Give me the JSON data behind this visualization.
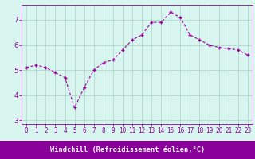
{
  "x": [
    0,
    1,
    2,
    3,
    4,
    5,
    6,
    7,
    8,
    9,
    10,
    11,
    12,
    13,
    14,
    15,
    16,
    17,
    18,
    19,
    20,
    21,
    22,
    23
  ],
  "y": [
    5.1,
    5.2,
    5.1,
    4.9,
    4.7,
    3.5,
    4.3,
    5.0,
    5.3,
    5.4,
    5.8,
    6.2,
    6.4,
    6.9,
    6.9,
    7.3,
    7.1,
    6.4,
    6.2,
    6.0,
    5.9,
    5.85,
    5.8,
    5.6
  ],
  "line_color": "#990099",
  "marker": "+",
  "bg_color": "#d8f5f0",
  "grid_color": "#b0d8cc",
  "xlabel": "Windchill (Refroidissement éolien,°C)",
  "xlabel_color": "#ffffff",
  "xlabel_bg": "#880099",
  "xlim": [
    -0.5,
    23.5
  ],
  "ylim": [
    2.85,
    7.6
  ],
  "yticks": [
    3,
    4,
    5,
    6,
    7
  ],
  "xticks": [
    0,
    1,
    2,
    3,
    4,
    5,
    6,
    7,
    8,
    9,
    10,
    11,
    12,
    13,
    14,
    15,
    16,
    17,
    18,
    19,
    20,
    21,
    22,
    23
  ],
  "tick_color": "#880099",
  "spine_color": "#880099",
  "axis_fontsize": 5.5,
  "ylabel_fontsize": 6.5
}
